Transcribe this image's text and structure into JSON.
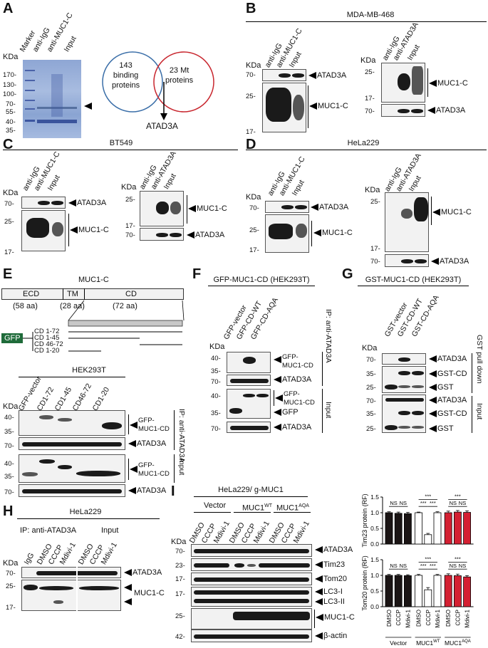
{
  "panels": {
    "A": {
      "letter": "A",
      "lanes": [
        "Marker",
        "anti-IgG",
        "anti-MUC1-C",
        "Input"
      ],
      "kda_label": "KDa",
      "markers": [
        "170-",
        "130-",
        "100-",
        "70-",
        "55-",
        "40-",
        "35-"
      ],
      "venn_left": "143\nbinding\nproteins",
      "venn_right": "23 Mt\nproteins",
      "result": "ATAD3A"
    },
    "B": {
      "letter": "B",
      "title": "MDA-MB-468",
      "kda_label": "KDa",
      "left_lanes": [
        "anti-IgG",
        "anti-MUC1-C",
        "Input"
      ],
      "right_lanes": [
        "anti-IgG",
        "anti-ATAD3A",
        "Input"
      ],
      "left_labels": [
        "ATAD3A",
        "MUC1-C"
      ],
      "right_labels": [
        "MUC1-C",
        "ATAD3A"
      ],
      "left_markers": [
        "70-",
        "25-",
        "17-"
      ],
      "right_markers": [
        "25-",
        "17-",
        "70-"
      ]
    },
    "C": {
      "letter": "C",
      "title": "BT549",
      "kda_label": "KDa",
      "left_lanes": [
        "anti-IgG",
        "anti-MUC1-C",
        "Input"
      ],
      "right_lanes": [
        "anti-IgG",
        "anti-ATAD3A",
        "Input"
      ],
      "left_labels": [
        "ATAD3A",
        "MUC1-C"
      ],
      "right_labels": [
        "MUC1-C",
        "ATAD3A"
      ],
      "left_markers": [
        "70-",
        "25-",
        "17-"
      ],
      "right_markers": [
        "25-",
        "17-",
        "70-"
      ]
    },
    "D": {
      "letter": "D",
      "title": "HeLa229",
      "kda_label": "KDa",
      "left_lanes": [
        "anti-IgG",
        "anti-MUC1-C",
        "Input"
      ],
      "right_lanes": [
        "anti-IgG",
        "anti-ATAD3A",
        "Input"
      ],
      "left_labels": [
        "ATAD3A",
        "MUC1-C"
      ],
      "right_labels": [
        "MUC1-C",
        "ATAD3A"
      ],
      "left_markers": [
        "70-",
        "25-",
        "17-"
      ],
      "right_markers": [
        "25-",
        "17-",
        "70-"
      ]
    },
    "E": {
      "letter": "E",
      "title": "MUC1-C",
      "domains": [
        "ECD",
        "TM",
        "CD"
      ],
      "domain_sizes": [
        "(58 aa)",
        "(28 aa)",
        "(72 aa)"
      ],
      "gfp": "GFP",
      "constructs": [
        "CD 1-72",
        "CD 1-45",
        "CD 46-72",
        "CD 1-20"
      ],
      "cell": "HEK293T",
      "kda_label": "KDa",
      "lanes": [
        "GFP-vector",
        "CD1-72",
        "CD1-45",
        "CD46-72",
        "CD1-20"
      ],
      "ip_labels": [
        "GFP-\nMUC1-CD",
        "ATAD3A"
      ],
      "input_labels": [
        "GFP-\nMUC1-CD",
        "ATAD3A"
      ],
      "markers_ip": [
        "40-",
        "35-",
        "70-"
      ],
      "markers_in": [
        "40-",
        "35-",
        "70-"
      ],
      "side_ip": "IP: anti-ATAD3A",
      "side_in": "Input"
    },
    "F": {
      "letter": "F",
      "title": "GFP-MUC1-CD (HEK293T)",
      "kda_label": "KDa",
      "lanes": [
        "GFP-vector",
        "GFP-CD-WT",
        "GFP-CD-AQA"
      ],
      "ip_labels": [
        "GFP-\nMUC1-CD",
        "ATAD3A"
      ],
      "input_labels": [
        "GFP-\nMUC1-CD",
        "GFP",
        "ATAD3A"
      ],
      "markers": [
        "40-",
        "35-",
        "70-",
        "40-",
        "35-",
        "70-"
      ],
      "side_ip": "IP: anti-ATAD3A",
      "side_in": "Input"
    },
    "G": {
      "letter": "G",
      "title": "GST-MUC1-CD (HEK293T)",
      "kda_label": "KDa",
      "lanes": [
        "GST-vector",
        "GST-CD-WT",
        "GST-CD-AQA"
      ],
      "labels": [
        "ATAD3A",
        "GST-CD",
        "GST",
        "ATAD3A",
        "GST-CD",
        "GST"
      ],
      "markers": [
        "70-",
        "35-",
        "25-",
        "70-",
        "35-",
        "25-"
      ],
      "side_pd": "GST pull down",
      "side_in": "Input"
    },
    "H": {
      "letter": "H",
      "title": "HeLa229",
      "ip": "IP: anti-ATAD3A",
      "input": "Input",
      "kda_label": "KDa",
      "lanes": [
        "IgG",
        "DMSO",
        "CCCP",
        "Mdivi-1",
        "DMSO",
        "CCCP",
        "Mdivi-1"
      ],
      "labels": [
        "ATAD3A",
        "MUC1-C"
      ],
      "markers": [
        "70-",
        "25-",
        "17-"
      ]
    },
    "I": {
      "letter": "I",
      "title": "HeLa229/ g-MUC1",
      "groups": [
        "Vector",
        "MUC1",
        "MUC1"
      ],
      "group_sup": [
        "",
        "WT",
        "AQA"
      ],
      "kda_label": "KDa",
      "lanes": [
        "DMSO",
        "CCCP",
        "Mdivi-1",
        "DMSO",
        "CCCP",
        "Mdivi-1",
        "DMSO",
        "CCCP",
        "Mdivi-1"
      ],
      "labels": [
        "ATAD3A",
        "Tim23",
        "Tom20",
        "LC3-I",
        "LC3-II",
        "MUC1-C",
        "β-actin"
      ],
      "markers": [
        "70-",
        "23-",
        "17-",
        "17-",
        "25-",
        "42-"
      ]
    }
  },
  "chart_data": [
    {
      "type": "bar",
      "ylabel": "Tim23 protein (RF)",
      "ylim": [
        0,
        1.5
      ],
      "yticks": [
        "0.0",
        "0.5",
        "1.0",
        "1.5"
      ],
      "categories": [
        "DMSO",
        "CCCP",
        "Mdivi-1",
        "DMSO",
        "CCCP",
        "Mdivi-1",
        "DMSO",
        "CCCP",
        "Mdivi-1"
      ],
      "groups": [
        "Vector",
        "MUC1WT",
        "MUC1AQA"
      ],
      "colors": [
        "#1a1414",
        "#1a1414",
        "#1a1414",
        "#ffffff",
        "#ffffff",
        "#ffffff",
        "#d42032",
        "#d42032",
        "#d42032"
      ],
      "values": [
        1.0,
        0.98,
        0.97,
        1.0,
        0.3,
        1.0,
        1.0,
        1.02,
        1.01
      ],
      "errors": [
        0.03,
        0.04,
        0.04,
        0.02,
        0.04,
        0.03,
        0.05,
        0.05,
        0.05
      ],
      "annotations": [
        "NS",
        "NS",
        "***",
        "***",
        "***",
        "***",
        "NS",
        "NS"
      ]
    },
    {
      "type": "bar",
      "ylabel": "Tom20 protein (RF)",
      "ylim": [
        0,
        1.5
      ],
      "yticks": [
        "0.0",
        "0.5",
        "1.0",
        "1.5"
      ],
      "categories": [
        "DMSO",
        "CCCP",
        "Mdivi-1",
        "DMSO",
        "CCCP",
        "Mdivi-1",
        "DMSO",
        "CCCP",
        "Mdivi-1"
      ],
      "groups": [
        "Vector",
        "MUC1WT",
        "MUC1AQA"
      ],
      "colors": [
        "#1a1414",
        "#1a1414",
        "#1a1414",
        "#ffffff",
        "#ffffff",
        "#ffffff",
        "#d42032",
        "#d42032",
        "#d42032"
      ],
      "values": [
        1.0,
        1.0,
        0.99,
        1.0,
        0.54,
        1.0,
        1.0,
        0.99,
        0.95
      ],
      "errors": [
        0.03,
        0.03,
        0.03,
        0.03,
        0.07,
        0.03,
        0.05,
        0.05,
        0.04
      ],
      "annotations": [
        "NS",
        "NS",
        "***",
        "***",
        "***",
        "***",
        "NS",
        "NS"
      ]
    }
  ]
}
